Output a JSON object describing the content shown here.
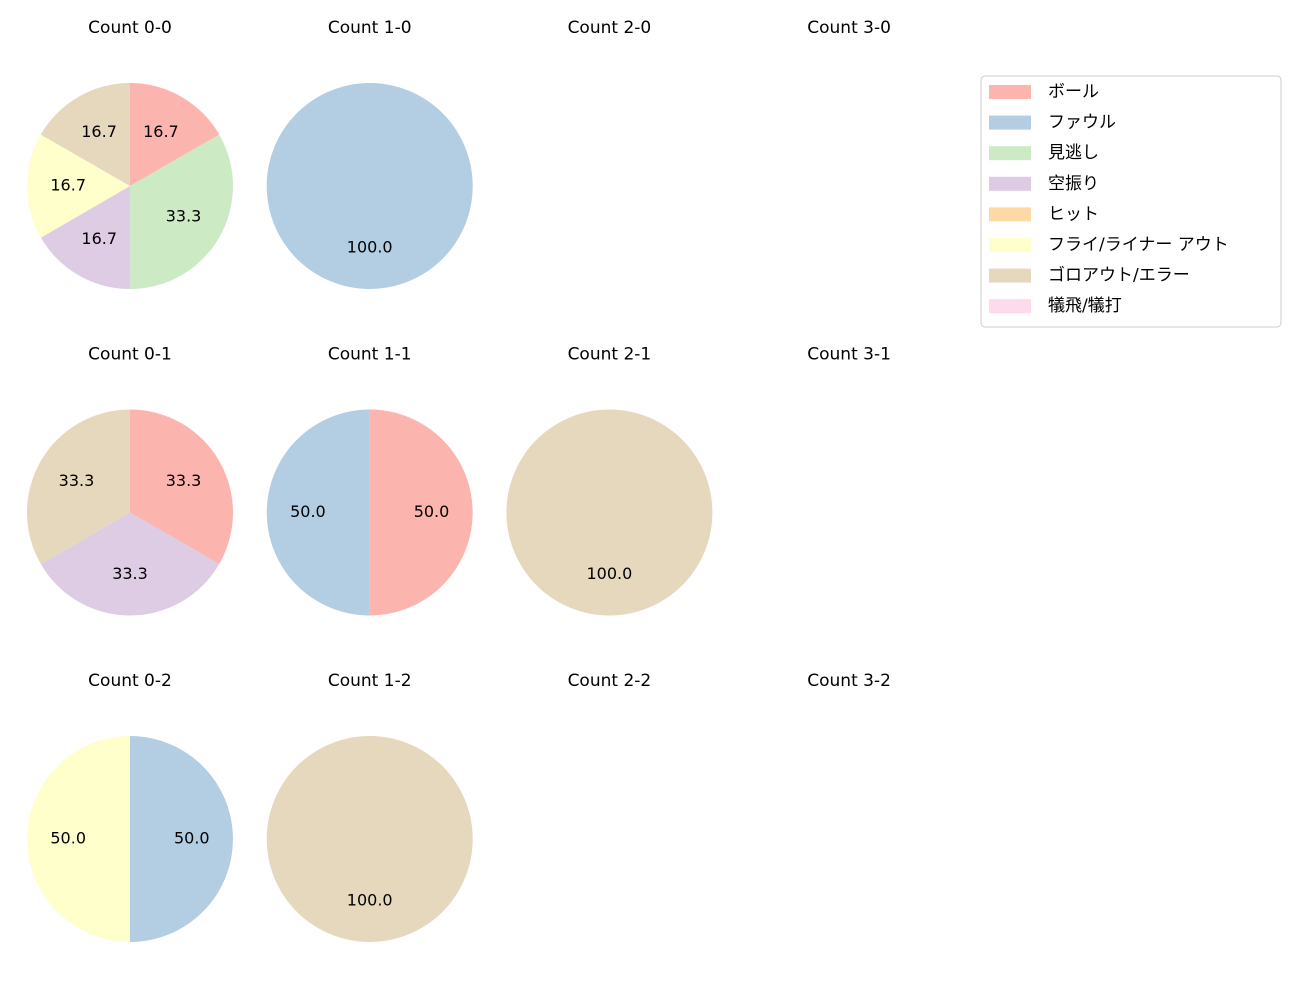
{
  "chart_data": [
    {
      "type": "pie",
      "title": "Count 0-0",
      "values": [
        16.7,
        null,
        33.3,
        16.7,
        null,
        16.7,
        16.7,
        null
      ],
      "value_labels": [
        "16.7",
        null,
        "33.3",
        "16.7",
        null,
        "16.7",
        "16.7",
        null
      ]
    },
    {
      "type": "pie",
      "title": "Count 1-0",
      "values": [
        null,
        100,
        null,
        null,
        null,
        null,
        null,
        null
      ],
      "value_labels": [
        null,
        "100.0",
        null,
        null,
        null,
        null,
        null,
        null
      ]
    },
    {
      "type": "pie",
      "title": "Count 2-0",
      "values": []
    },
    {
      "type": "pie",
      "title": "Count 3-0",
      "values": []
    },
    {
      "type": "pie",
      "title": "Count 0-1",
      "values": [
        33.3,
        null,
        null,
        33.3,
        null,
        null,
        33.3,
        null
      ],
      "value_labels": [
        "33.3",
        null,
        null,
        "33.3",
        null,
        null,
        "33.3",
        null
      ]
    },
    {
      "type": "pie",
      "title": "Count 1-1",
      "values": [
        50,
        50,
        null,
        null,
        null,
        null,
        null,
        null
      ],
      "value_labels": [
        "50.0",
        "50.0",
        null,
        null,
        null,
        null,
        null,
        null
      ]
    },
    {
      "type": "pie",
      "title": "Count 2-1",
      "values": [
        null,
        null,
        null,
        null,
        null,
        null,
        100,
        null
      ],
      "value_labels": [
        null,
        null,
        null,
        null,
        null,
        null,
        "100.0",
        null
      ]
    },
    {
      "type": "pie",
      "title": "Count 3-1",
      "values": []
    },
    {
      "type": "pie",
      "title": "Count 0-2",
      "values": [
        null,
        50,
        null,
        null,
        null,
        50,
        null,
        null
      ],
      "value_labels": [
        null,
        "50.0",
        null,
        null,
        null,
        "50.0",
        null,
        null
      ]
    },
    {
      "type": "pie",
      "title": "Count 1-2",
      "values": [
        null,
        null,
        null,
        null,
        null,
        null,
        100,
        null
      ],
      "value_labels": [
        null,
        null,
        null,
        null,
        null,
        null,
        "100.0",
        null
      ]
    },
    {
      "type": "pie",
      "title": "Count 2-2",
      "values": []
    },
    {
      "type": "pie",
      "title": "Count 3-2",
      "values": []
    }
  ],
  "legend": {
    "entries": [
      {
        "name": "ボール",
        "color": "#fbb4ae"
      },
      {
        "name": "ファウル",
        "color": "#b3cde3"
      },
      {
        "name": "見逃し",
        "color": "#ccebc5"
      },
      {
        "name": "空振り",
        "color": "#decbe4"
      },
      {
        "name": "ヒット",
        "color": "#fed9a6"
      },
      {
        "name": "フライ/ライナー アウト",
        "color": "#ffffcc"
      },
      {
        "name": "ゴロアウト/エラー",
        "color": "#e5d8bd"
      },
      {
        "name": "犠飛/犠打",
        "color": "#fddaec"
      }
    ]
  }
}
